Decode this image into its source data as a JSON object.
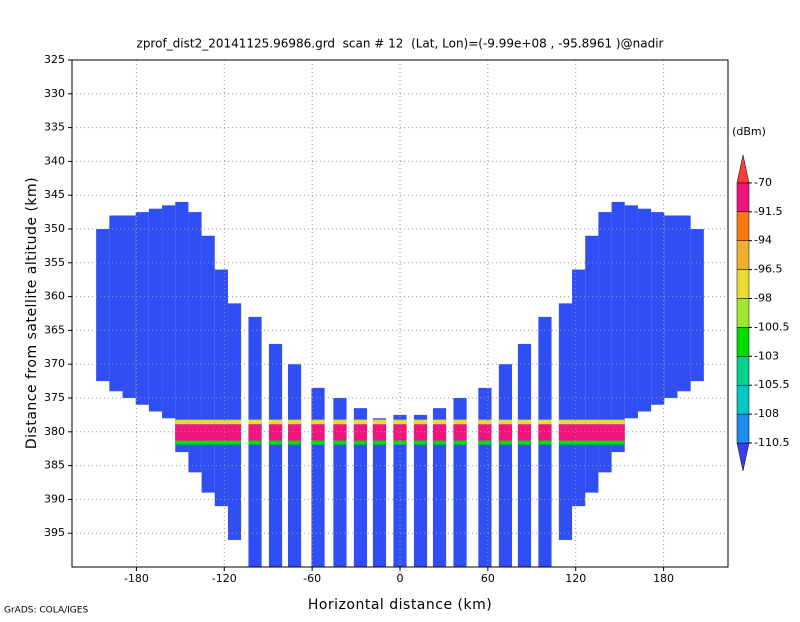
{
  "chart_data": {
    "type": "swath",
    "title": "zprof_dist2_20141125.96986.grd  scan # 12  (Lat, Lon)=(-9.99e+08 , -95.8961 )@nadir",
    "xlabel": "Horizontal distance (km)",
    "ylabel": "Distance from satellite altitude (km)",
    "credit": "GrADS: COLA/IGES",
    "xlim": [
      -224,
      224
    ],
    "ylim": [
      325,
      400
    ],
    "y_inverted": true,
    "xticks": [
      -180,
      -120,
      -60,
      0,
      60,
      120,
      180
    ],
    "yticks": [
      325,
      330,
      335,
      340,
      345,
      350,
      355,
      360,
      365,
      370,
      375,
      380,
      385,
      390,
      395
    ],
    "grid": true,
    "column_width": 9,
    "column_color": "#2f4ff5",
    "columns": [
      {
        "x": -203,
        "top": 350,
        "bottom": 372.5
      },
      {
        "x": -194,
        "top": 348,
        "bottom": 374
      },
      {
        "x": -185,
        "top": 348,
        "bottom": 375
      },
      {
        "x": -176,
        "top": 347.5,
        "bottom": 376
      },
      {
        "x": -167,
        "top": 347,
        "bottom": 377
      },
      {
        "x": -158,
        "top": 346.5,
        "bottom": 378
      },
      {
        "x": -149,
        "top": 346,
        "bottom": 383
      },
      {
        "x": -140,
        "top": 347.5,
        "bottom": 386
      },
      {
        "x": -131,
        "top": 351,
        "bottom": 389
      },
      {
        "x": -122,
        "top": 356,
        "bottom": 391
      },
      {
        "x": -113,
        "top": 361,
        "bottom": 396
      },
      {
        "x": -99,
        "top": 363,
        "bottom": 400
      },
      {
        "x": -85,
        "top": 367,
        "bottom": 400
      },
      {
        "x": -72,
        "top": 370,
        "bottom": 400
      },
      {
        "x": -56,
        "top": 373.5,
        "bottom": 400
      },
      {
        "x": -41,
        "top": 375,
        "bottom": 400
      },
      {
        "x": -27,
        "top": 376.5,
        "bottom": 400
      },
      {
        "x": -14,
        "top": 378,
        "bottom": 400
      },
      {
        "x": 0,
        "top": 377.5,
        "bottom": 400
      },
      {
        "x": 14,
        "top": 377.5,
        "bottom": 400
      },
      {
        "x": 27,
        "top": 376.5,
        "bottom": 400
      },
      {
        "x": 41,
        "top": 375,
        "bottom": 400
      },
      {
        "x": 58,
        "top": 373.5,
        "bottom": 400
      },
      {
        "x": 72,
        "top": 370,
        "bottom": 400
      },
      {
        "x": 85,
        "top": 367,
        "bottom": 400
      },
      {
        "x": 99,
        "top": 363,
        "bottom": 400
      },
      {
        "x": 113,
        "top": 361,
        "bottom": 396
      },
      {
        "x": 122,
        "top": 356,
        "bottom": 391
      },
      {
        "x": 131,
        "top": 351,
        "bottom": 389
      },
      {
        "x": 140,
        "top": 347.5,
        "bottom": 386
      },
      {
        "x": 149,
        "top": 346,
        "bottom": 383
      },
      {
        "x": 158,
        "top": 346.5,
        "bottom": 378
      },
      {
        "x": 167,
        "top": 347,
        "bottom": 377
      },
      {
        "x": 176,
        "top": 347.5,
        "bottom": 376
      },
      {
        "x": 185,
        "top": 348,
        "bottom": 375
      },
      {
        "x": 194,
        "top": 348,
        "bottom": 374
      },
      {
        "x": 203,
        "top": 350,
        "bottom": 372.5
      }
    ],
    "band_xlim": [
      -152,
      152
    ],
    "bands": [
      {
        "top": 378.2,
        "bottom": 378.9,
        "color": "#e6dc32"
      },
      {
        "top": 378.9,
        "bottom": 381.3,
        "color": "#f0147d"
      },
      {
        "top": 381.3,
        "bottom": 381.9,
        "color": "#00dc00"
      }
    ],
    "colorbar_unit": "(dBm)",
    "levels": [
      -110.5,
      -108,
      -105.5,
      -103,
      -100.5,
      -98,
      -96.5,
      -94,
      -91.5,
      -70
    ],
    "level_colors": [
      "#3c3cf0",
      "#1e8cf0",
      "#00c8c8",
      "#00d28c",
      "#00dc00",
      "#a0e632",
      "#e6dc32",
      "#f0af2d",
      "#fa7814",
      "#f0147d",
      "#fa3c3c"
    ]
  }
}
